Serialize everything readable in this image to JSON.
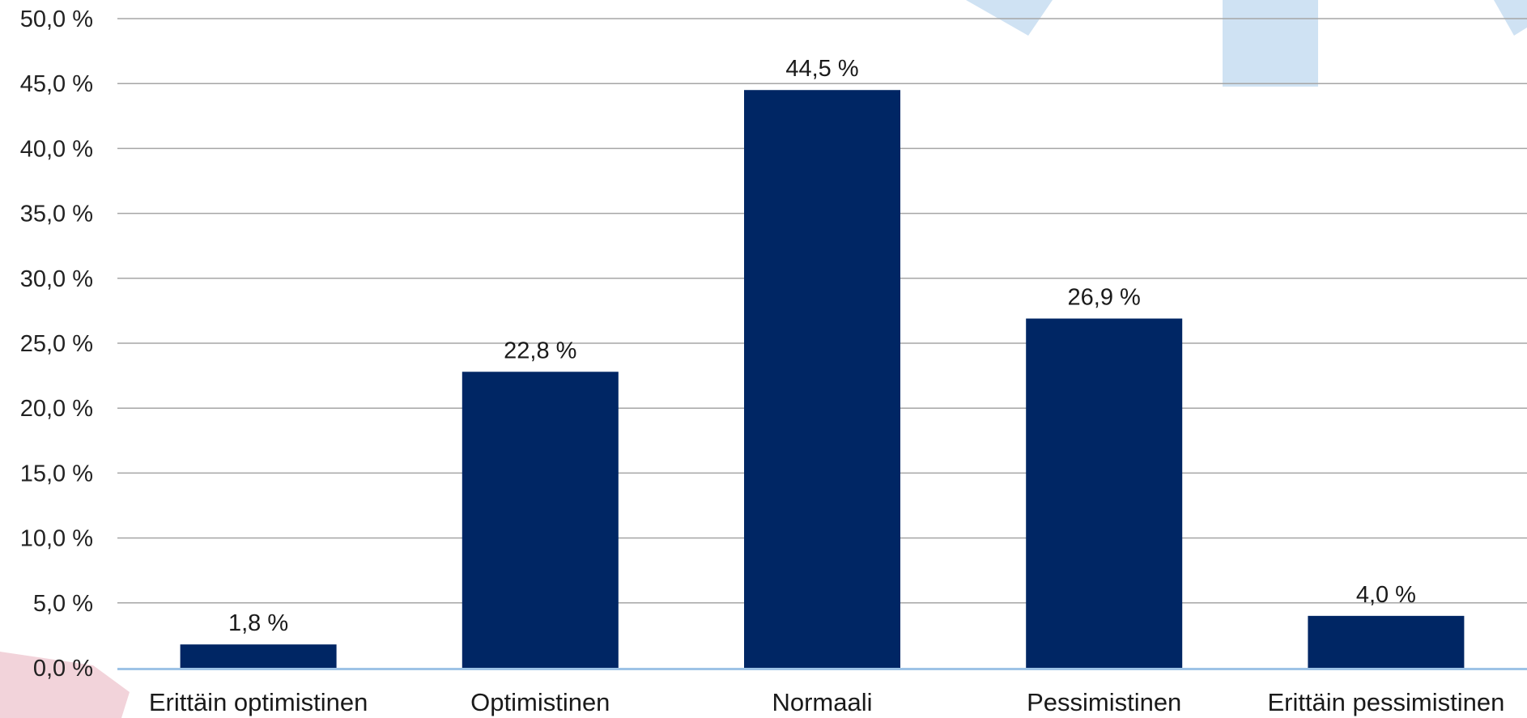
{
  "chart_data": {
    "type": "bar",
    "categories": [
      "Erittäin optimistinen",
      "Optimistinen",
      "Normaali",
      "Pessimistinen",
      "Erittäin pessimistinen"
    ],
    "values": [
      1.8,
      22.8,
      44.5,
      26.9,
      4.0
    ],
    "value_labels": [
      "1,8 %",
      "22,8 %",
      "44,5 %",
      "26,9 %",
      "4,0 %"
    ],
    "ylim": [
      0,
      50
    ],
    "yticks": [
      0,
      5,
      10,
      15,
      20,
      25,
      30,
      35,
      40,
      45,
      50
    ],
    "ytick_labels": [
      "0,0 %",
      "5,0 %",
      "10,0 %",
      "15,0 %",
      "20,0 %",
      "25,0 %",
      "30,0 %",
      "35,0 %",
      "40,0 %",
      "45,0 %",
      "50,0 %"
    ],
    "grid": true,
    "legend": "none"
  },
  "colors": {
    "bar": "#002664",
    "grid": "#a6a6a6",
    "axis": "#9dc3e6",
    "decor_blue": "#cfe2f3",
    "decor_pink": "#f2d3da"
  }
}
